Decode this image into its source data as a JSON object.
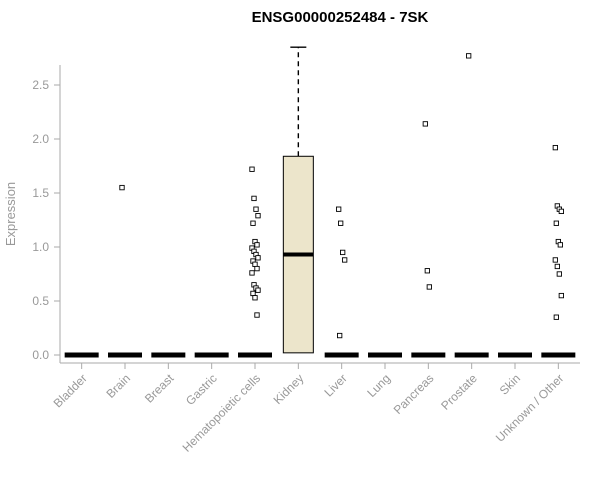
{
  "chart_data": {
    "type": "boxplot",
    "title": "ENSG00000252484 - 7SK",
    "ylabel": "Expression",
    "ylim": [
      0,
      2.9
    ],
    "yticks": [
      0.0,
      0.5,
      1.0,
      1.5,
      2.0,
      2.5
    ],
    "grid": false,
    "legend": "none",
    "axis_color": "#aaaaaa",
    "label_color": "#999999",
    "box_fill": "#ece5cb",
    "box_stroke": "#000000",
    "median_color": "#000000",
    "categories": [
      "Bladder",
      "Brain",
      "Breast",
      "Gastric",
      "Hematopoietic cells",
      "Kidney",
      "Liver",
      "Lung",
      "Pancreas",
      "Prostate",
      "Skin",
      "Unknown / Other"
    ],
    "boxes": [
      {
        "category": "Bladder",
        "median": 0,
        "q1": 0,
        "q3": 0,
        "whisker_low": 0,
        "whisker_high": 0,
        "outliers": []
      },
      {
        "category": "Brain",
        "median": 0,
        "q1": 0,
        "q3": 0,
        "whisker_low": 0,
        "whisker_high": 0,
        "outliers": [
          1.55
        ]
      },
      {
        "category": "Breast",
        "median": 0,
        "q1": 0,
        "q3": 0,
        "whisker_low": 0,
        "whisker_high": 0,
        "outliers": []
      },
      {
        "category": "Gastric",
        "median": 0,
        "q1": 0,
        "q3": 0,
        "whisker_low": 0,
        "whisker_high": 0,
        "outliers": []
      },
      {
        "category": "Hematopoietic cells",
        "median": 0,
        "q1": 0,
        "q3": 0,
        "whisker_low": 0,
        "whisker_high": 0,
        "outliers": [
          1.72,
          1.45,
          1.35,
          1.29,
          1.22,
          1.05,
          1.02,
          0.99,
          0.96,
          0.93,
          0.9,
          0.87,
          0.84,
          0.8,
          0.76,
          0.65,
          0.62,
          0.6,
          0.57,
          0.53,
          0.37
        ]
      },
      {
        "category": "Kidney",
        "median": 0.93,
        "q1": 0.02,
        "q3": 1.84,
        "whisker_low": 0,
        "whisker_high": 2.85,
        "outliers": []
      },
      {
        "category": "Liver",
        "median": 0,
        "q1": 0,
        "q3": 0,
        "whisker_low": 0,
        "whisker_high": 0,
        "outliers": [
          1.35,
          1.22,
          0.95,
          0.88,
          0.18
        ]
      },
      {
        "category": "Lung",
        "median": 0,
        "q1": 0,
        "q3": 0,
        "whisker_low": 0,
        "whisker_high": 0,
        "outliers": []
      },
      {
        "category": "Pancreas",
        "median": 0,
        "q1": 0,
        "q3": 0,
        "whisker_low": 0,
        "whisker_high": 0,
        "outliers": [
          2.14,
          0.78,
          0.63
        ]
      },
      {
        "category": "Prostate",
        "median": 0,
        "q1": 0,
        "q3": 0,
        "whisker_low": 0,
        "whisker_high": 0,
        "outliers": [
          2.77
        ]
      },
      {
        "category": "Skin",
        "median": 0,
        "q1": 0,
        "q3": 0,
        "whisker_low": 0,
        "whisker_high": 0,
        "outliers": []
      },
      {
        "category": "Unknown / Other",
        "median": 0,
        "q1": 0,
        "q3": 0,
        "whisker_low": 0,
        "whisker_high": 0,
        "outliers": [
          1.92,
          1.38,
          1.35,
          1.33,
          1.22,
          1.05,
          1.02,
          0.88,
          0.82,
          0.75,
          0.55,
          0.35
        ]
      }
    ]
  }
}
